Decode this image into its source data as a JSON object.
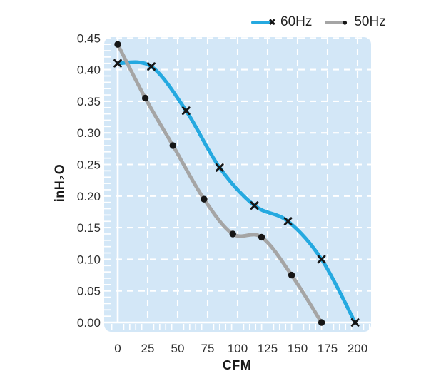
{
  "legend": {
    "items": [
      {
        "label": "60Hz",
        "color": "#25A9E0",
        "marker": "x",
        "marker_glyph": "✖"
      },
      {
        "label": "50Hz",
        "color": "#A5A5A5",
        "marker": "dot",
        "marker_glyph": "●"
      }
    ]
  },
  "axes": {
    "x_label": "CFM",
    "y_label": "inH₂O"
  },
  "colors": {
    "panel_bg": "#D3E7F7",
    "grid": "#FFFFFF",
    "marker": "#161616",
    "tick_text": "#303030"
  },
  "chart_data": {
    "type": "line",
    "title": "",
    "xlabel": "CFM",
    "ylabel": "inH₂O",
    "xlim": [
      0,
      200
    ],
    "ylim": [
      0,
      0.45
    ],
    "grid": true,
    "legend_position": "top-right",
    "xtick_labels": [
      "0",
      "25",
      "50",
      "75",
      "100",
      "125",
      "150",
      "175",
      "200"
    ],
    "ytick_labels": [
      "0.00",
      "0.05",
      "0.10",
      "0.15",
      "0.20",
      "0.25",
      "0.30",
      "0.35",
      "0.40",
      "0.45"
    ],
    "series": [
      {
        "name": "60Hz",
        "marker": "x",
        "color": "#25A9E0",
        "points": [
          [
            0,
            0.41
          ],
          [
            28,
            0.405
          ],
          [
            57,
            0.335
          ],
          [
            85,
            0.245
          ],
          [
            114,
            0.185
          ],
          [
            142,
            0.16
          ],
          [
            170,
            0.1
          ],
          [
            198,
            0.0
          ]
        ]
      },
      {
        "name": "50Hz",
        "marker": "dot",
        "color": "#A5A5A5",
        "points": [
          [
            0,
            0.44
          ],
          [
            23,
            0.355
          ],
          [
            46,
            0.28
          ],
          [
            72,
            0.195
          ],
          [
            96,
            0.14
          ],
          [
            120,
            0.135
          ],
          [
            145,
            0.075
          ],
          [
            170,
            0.0
          ]
        ]
      }
    ]
  }
}
